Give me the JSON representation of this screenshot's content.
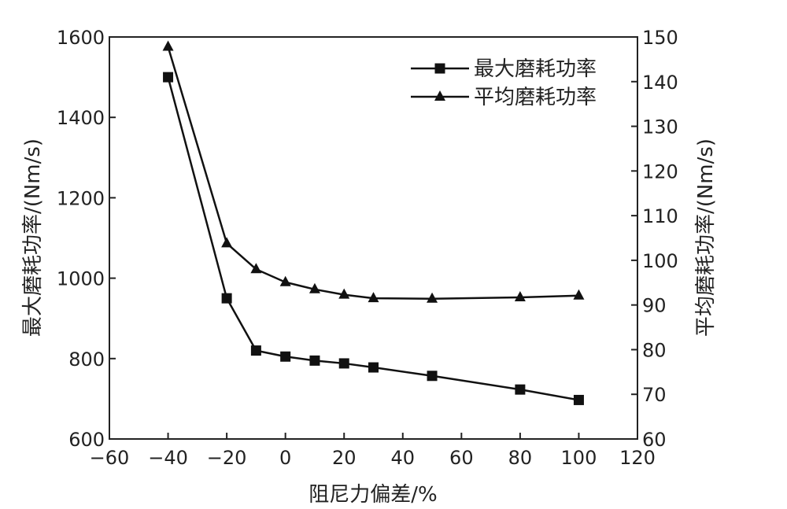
{
  "chart_data": {
    "type": "line",
    "xlabel": "阻尼力偏差/%",
    "ylabel_left": "最大磨耗功率/(Nm/s)",
    "ylabel_right": "平均磨耗功率/(Nm/s)",
    "xlim": [
      -60,
      120
    ],
    "xticks": [
      -60,
      -40,
      -20,
      0,
      20,
      40,
      60,
      80,
      100,
      120
    ],
    "ylim_left": [
      600,
      1600
    ],
    "yticks_left": [
      600,
      800,
      1000,
      1200,
      1400,
      1600
    ],
    "ylim_right": [
      60,
      150
    ],
    "yticks_right": [
      60,
      70,
      80,
      90,
      100,
      110,
      120,
      130,
      140,
      150
    ],
    "grid": false,
    "legend_position": "top-right",
    "series": [
      {
        "name": "最大磨耗功率",
        "axis": "left",
        "marker": "square",
        "x": [
          -40,
          -20,
          -10,
          0,
          10,
          20,
          30,
          50,
          80,
          100
        ],
        "values": [
          1500,
          950,
          820,
          805,
          795,
          788,
          778,
          757,
          723,
          697
        ]
      },
      {
        "name": "平均磨耗功率",
        "axis": "right",
        "marker": "triangle",
        "x": [
          -40,
          -20,
          -10,
          0,
          10,
          20,
          30,
          50,
          80,
          100
        ],
        "values": [
          147.8,
          103.8,
          98.0,
          95.1,
          93.5,
          92.3,
          91.5,
          91.4,
          91.7,
          92.1
        ]
      }
    ]
  }
}
